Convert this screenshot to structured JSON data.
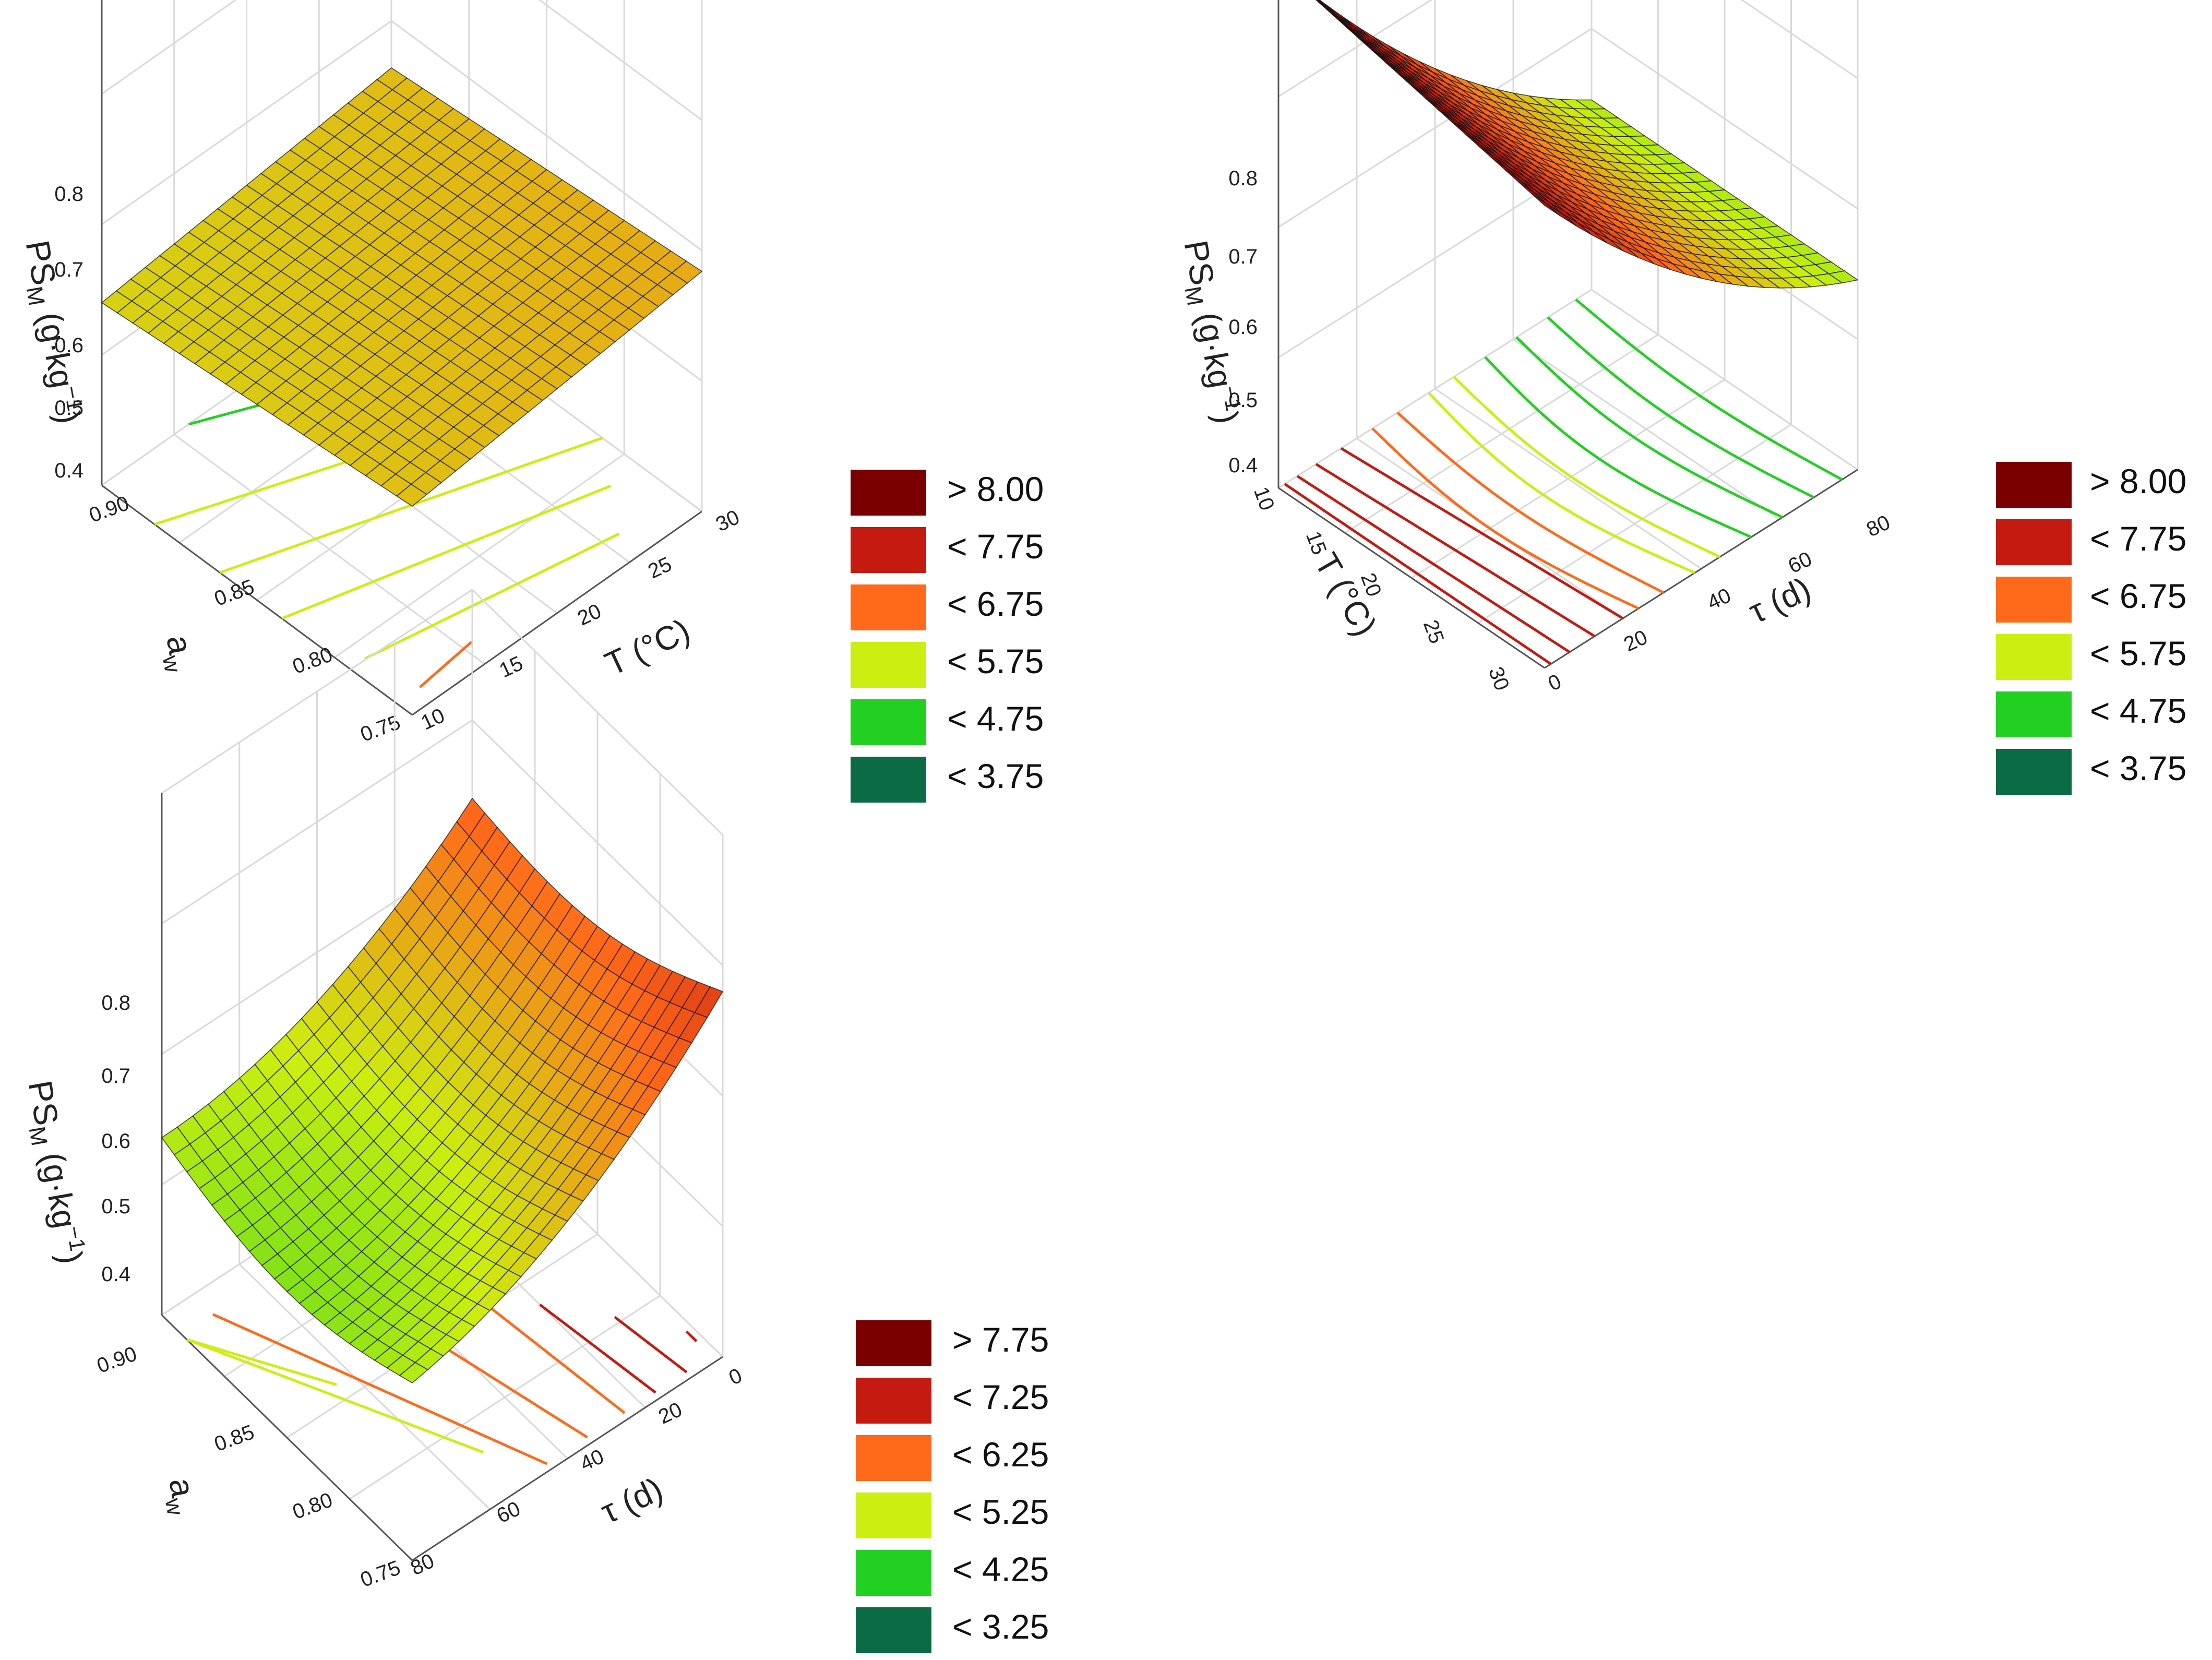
{
  "figure": {
    "description_free": true
  },
  "palette": {
    "gt": "#7a0000",
    "l1": "#c41a10",
    "l2": "#ff6a1a",
    "l3": "#ccee11",
    "l4": "#22d022",
    "l5": "#0a6b45",
    "grid": "#d9d9d9"
  },
  "chart_data": [
    {
      "id": "panel_a",
      "type": "surface3d",
      "z_label_main": "PS",
      "z_label_sub": "M",
      "z_label_unit": " (g·kg",
      "z_label_exp": "−1",
      "z_label_close": ")",
      "x_label": "T (°C)",
      "y_label_main": "a",
      "y_label_sub": "w",
      "x_ticks": [
        "10",
        "15",
        "20",
        "25",
        "30"
      ],
      "y_ticks": [
        "0.75",
        "0.80",
        "0.85",
        "0.90"
      ],
      "z_ticks": [
        "0.4",
        "0.5",
        "0.6",
        "0.7",
        "0.8"
      ],
      "x_range": [
        10,
        30
      ],
      "y_range": [
        0.75,
        0.9
      ],
      "z_range": [
        0.35,
        0.85
      ],
      "legend": [
        {
          "label": "> 8.00",
          "color": "#7a0000"
        },
        {
          "label": "< 7.75",
          "color": "#c41a10"
        },
        {
          "label": "< 6.75",
          "color": "#ff6a1a"
        },
        {
          "label": "< 5.75",
          "color": "#ccee11"
        },
        {
          "label": "< 4.75",
          "color": "#22d022"
        },
        {
          "label": "< 3.75",
          "color": "#0a6b45"
        }
      ]
    },
    {
      "id": "panel_b",
      "type": "surface3d",
      "z_label_main": "PS",
      "z_label_sub": "M",
      "z_label_unit": " (g·kg",
      "z_label_exp": "−1",
      "z_label_close": ")",
      "x_label": "τ (d)",
      "y_label": "T (°C)",
      "x_ticks": [
        "0",
        "20",
        "40",
        "60",
        "80"
      ],
      "y_ticks": [
        "10",
        "15",
        "20",
        "25",
        "30"
      ],
      "z_ticks": [
        "0.4",
        "0.5",
        "0.6",
        "0.7",
        "0.8"
      ],
      "x_range": [
        0,
        80
      ],
      "y_range": [
        10,
        30
      ],
      "z_range": [
        0.38,
        0.82
      ],
      "legend": [
        {
          "label": "> 8.00",
          "color": "#7a0000"
        },
        {
          "label": "< 7.75",
          "color": "#c41a10"
        },
        {
          "label": "< 6.75",
          "color": "#ff6a1a"
        },
        {
          "label": "< 5.75",
          "color": "#ccee11"
        },
        {
          "label": "< 4.75",
          "color": "#22d022"
        },
        {
          "label": "< 3.75",
          "color": "#0a6b45"
        }
      ]
    },
    {
      "id": "panel_c",
      "type": "surface3d",
      "z_label_main": "PS",
      "z_label_sub": "M",
      "z_label_unit": " (g·kg",
      "z_label_exp": "−1",
      "z_label_close": ")",
      "x_label": "τ (d)",
      "y_label_main": "a",
      "y_label_sub": "w",
      "x_ticks": [
        "80",
        "60",
        "40",
        "20",
        "0"
      ],
      "y_ticks": [
        "0.75",
        "0.80",
        "0.85",
        "0.90"
      ],
      "z_ticks": [
        "0.4",
        "0.5",
        "0.6",
        "0.7",
        "0.8"
      ],
      "x_range": [
        80,
        0
      ],
      "y_range": [
        0.75,
        0.9
      ],
      "z_range": [
        0.35,
        0.85
      ],
      "legend": [
        {
          "label": "> 7.75",
          "color": "#7a0000"
        },
        {
          "label": "< 7.25",
          "color": "#c41a10"
        },
        {
          "label": "< 6.25",
          "color": "#ff6a1a"
        },
        {
          "label": "< 5.25",
          "color": "#ccee11"
        },
        {
          "label": "< 4.25",
          "color": "#22d022"
        },
        {
          "label": "< 3.25",
          "color": "#0a6b45"
        }
      ]
    }
  ]
}
